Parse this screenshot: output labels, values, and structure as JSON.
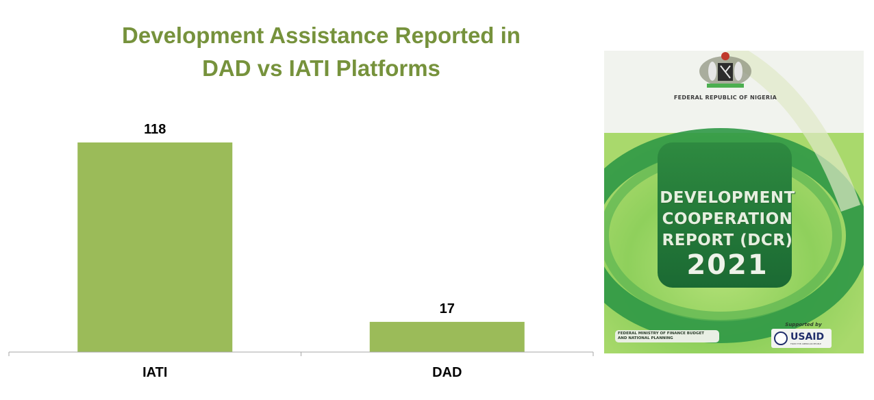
{
  "chart_data": {
    "type": "bar",
    "title": "Development Assistance Reported in DAD vs IATI Platforms",
    "title_lines": [
      "Development Assistance Reported in",
      "DAD vs IATI Platforms"
    ],
    "categories": [
      "IATI",
      "DAD"
    ],
    "values": [
      118,
      17
    ],
    "data_labels": [
      "118",
      "17"
    ],
    "ylim": [
      0,
      118
    ],
    "xlabel": "",
    "ylabel": "",
    "grid": false,
    "legend": "none",
    "bar_color": "#9bbb59",
    "title_color": "#76923c"
  },
  "cover": {
    "country": "FEDERAL REPUBLIC OF NIGERIA",
    "title_lines": [
      "DEVELOPMENT",
      "COOPERATION",
      "REPORT (DCR)"
    ],
    "year": "2021",
    "ministry_lines": [
      "FEDERAL MINISTRY OF FINANCE BUDGET",
      "AND NATIONAL PLANNING"
    ],
    "supported_by": "Supported by",
    "sponsor": "USAID",
    "sponsor_tagline": "FROM THE AMERICAN PEOPLE",
    "colors": {
      "dark_green": "#1f7a3a",
      "mid_green": "#3a9a4a",
      "light_green": "#a8d867"
    },
    "icons": [
      "coat-of-arms-icon",
      "usaid-seal-icon"
    ]
  }
}
